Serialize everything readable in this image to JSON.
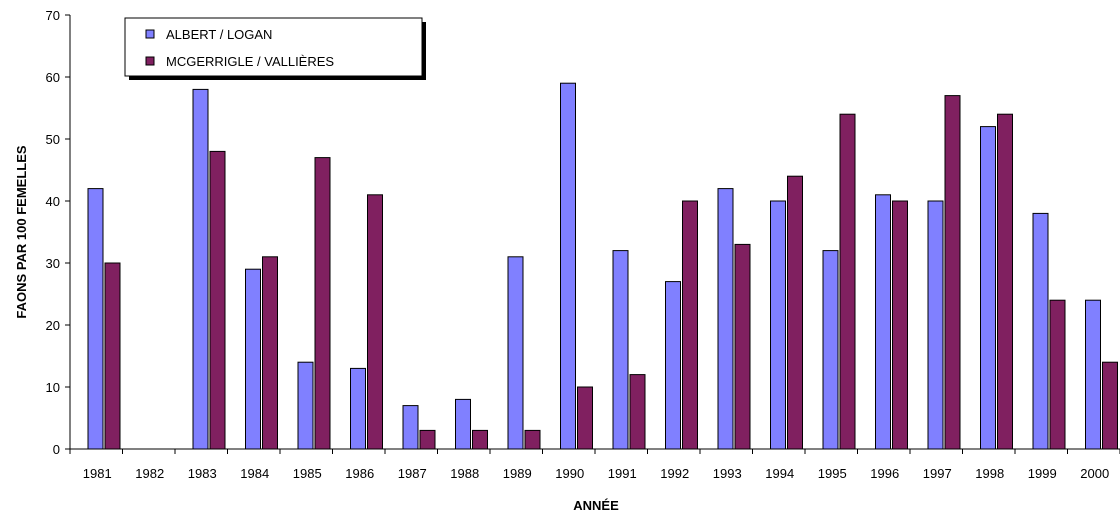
{
  "chart_data": {
    "type": "bar",
    "title": "",
    "xlabel": "ANNÉE",
    "ylabel": "FAONS PAR 100 FEMELLES",
    "ylim": [
      0,
      70
    ],
    "yticks": [
      "0",
      "10",
      "20",
      "30",
      "40",
      "50",
      "60",
      "70"
    ],
    "grid": false,
    "legend_position": "top-left",
    "categories": [
      "1981",
      "1982",
      "1983",
      "1984",
      "1985",
      "1986",
      "1987",
      "1988",
      "1989",
      "1990",
      "1991",
      "1992",
      "1993",
      "1994",
      "1995",
      "1996",
      "1997",
      "1998",
      "1999",
      "2000"
    ],
    "series": [
      {
        "name": "ALBERT / LOGAN",
        "color": "#8080ff",
        "values": [
          42,
          null,
          58,
          29,
          14,
          13,
          7,
          8,
          31,
          59,
          32,
          27,
          42,
          40,
          32,
          41,
          40,
          52,
          38,
          24
        ]
      },
      {
        "name": "MCGERRIGLE / VALLIÈRES",
        "color": "#802060",
        "values": [
          30,
          null,
          48,
          31,
          47,
          41,
          3,
          3,
          3,
          10,
          12,
          40,
          33,
          44,
          54,
          40,
          57,
          54,
          24,
          14
        ]
      }
    ]
  }
}
